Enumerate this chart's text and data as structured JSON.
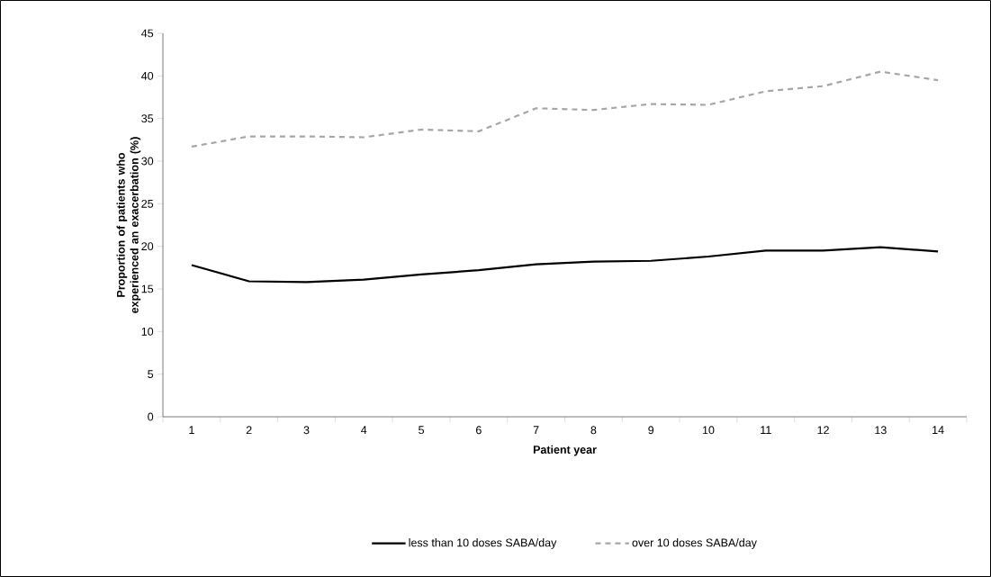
{
  "chart_data": {
    "type": "line",
    "xlabel": "Patient year",
    "ylabel": "Proportion of patients who experienced an exacerbation (%)",
    "categories": [
      "1",
      "2",
      "3",
      "4",
      "5",
      "6",
      "7",
      "8",
      "9",
      "10",
      "11",
      "12",
      "13",
      "14"
    ],
    "series": [
      {
        "name": "less than 10 doses SABA/day",
        "color": "#000000",
        "line_style": "solid",
        "values": [
          17.8,
          15.9,
          15.8,
          16.1,
          16.7,
          17.2,
          17.9,
          18.2,
          18.3,
          18.8,
          19.5,
          19.5,
          19.9,
          19.4
        ]
      },
      {
        "name": "over 10 doses SABA/day",
        "color": "#a6a6a6",
        "line_style": "dashed",
        "values": [
          31.7,
          32.9,
          32.9,
          32.8,
          33.7,
          33.5,
          36.2,
          36.0,
          36.7,
          36.6,
          38.2,
          38.8,
          40.5,
          39.5
        ]
      }
    ],
    "ylim": [
      0,
      45
    ],
    "yticks": [
      0,
      5,
      10,
      15,
      20,
      25,
      30,
      35,
      40,
      45
    ],
    "grid": false,
    "legend": "bottom",
    "marker": "none"
  }
}
